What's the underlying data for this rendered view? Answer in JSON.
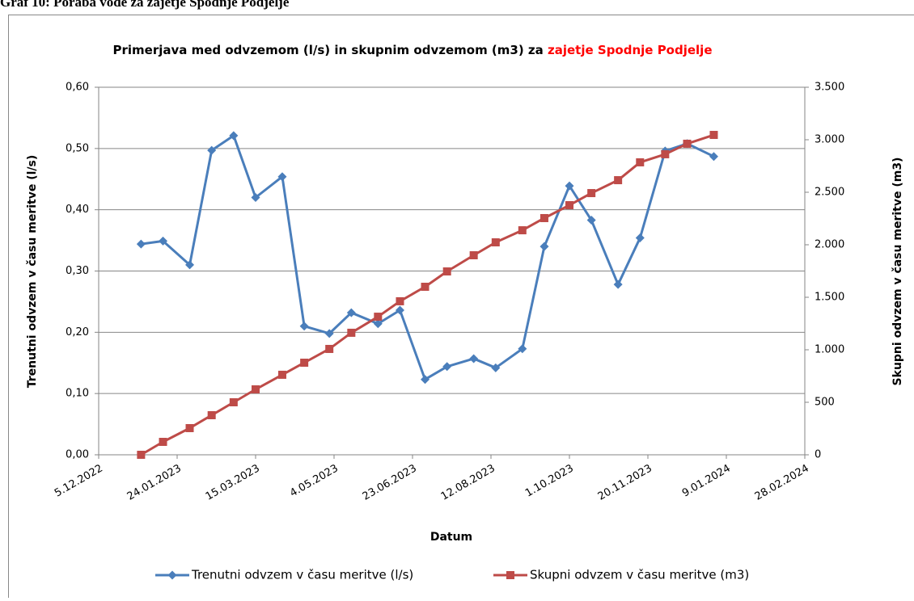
{
  "header": "Graf 10: Poraba vode za zajetje Spodnje Podjelje",
  "chart_data": {
    "type": "line",
    "title": "Primerjava med odvzemom (l/s) in skupnim odvzemom (m3) za",
    "title_highlight": "zajetje Spodnje Podjelje",
    "x_label": "Datum",
    "y_label": "Trenutni odvzem v času meritve (l/s)",
    "y2_label": "Skupni odvzem v času meritve (m3)",
    "x": [
      "2023-01-01",
      "2023-01-15",
      "2023-02-01",
      "2023-02-15",
      "2023-03-01",
      "2023-03-15",
      "2023-04-01",
      "2023-04-15",
      "2023-05-01",
      "2023-05-15",
      "2023-06-01",
      "2023-06-15",
      "2023-07-01",
      "2023-07-15",
      "2023-08-01",
      "2023-08-15",
      "2023-09-01",
      "2023-09-15",
      "2023-10-01",
      "2023-10-15",
      "2023-11-01",
      "2023-11-15",
      "2023-12-01",
      "2023-12-15",
      "2024-01-01"
    ],
    "series": [
      {
        "name": "Trenutni odvzem v času meritve (l/s)",
        "color": "#4a7ebb",
        "marker": "diamond",
        "values": [
          0.344,
          0.349,
          0.31,
          0.497,
          0.521,
          0.42,
          0.454,
          0.21,
          0.198,
          0.232,
          0.214,
          0.236,
          0.123,
          0.144,
          0.157,
          0.142,
          0.173,
          0.34,
          0.439,
          0.383,
          0.278,
          0.354,
          0.496,
          0.508,
          0.487
        ]
      },
      {
        "name": "Skupni odvzem v času meritve (m3)",
        "color": "#be4b48",
        "marker": "square",
        "axis": "y2",
        "values": [
          0,
          123,
          254,
          377,
          500,
          623,
          762,
          877,
          1008,
          1162,
          1315,
          1462,
          1600,
          1746,
          1900,
          2023,
          2138,
          2254,
          2377,
          2492,
          2615,
          2785,
          2862,
          2962,
          3046
        ]
      }
    ],
    "xlim": [
      "2022-12-05",
      "2024-02-28"
    ],
    "xticks": [
      {
        "value": "2022-12-05",
        "label": "5.12.2022"
      },
      {
        "value": "2023-01-24",
        "label": "24.01.2023"
      },
      {
        "value": "2023-03-15",
        "label": "15.03.2023"
      },
      {
        "value": "2023-05-04",
        "label": "4.05.2023"
      },
      {
        "value": "2023-06-23",
        "label": "23.06.2023"
      },
      {
        "value": "2023-08-12",
        "label": "12.08.2023"
      },
      {
        "value": "2023-10-01",
        "label": "1.10.2023"
      },
      {
        "value": "2023-11-20",
        "label": "20.11.2023"
      },
      {
        "value": "2024-01-09",
        "label": "9.01.2024"
      },
      {
        "value": "2024-02-28",
        "label": "28.02.2024"
      }
    ],
    "ylim": [
      0,
      0.6
    ],
    "yticks": [
      {
        "value": 0,
        "label": "0,00"
      },
      {
        "value": 0.1,
        "label": "0,10"
      },
      {
        "value": 0.2,
        "label": "0,20"
      },
      {
        "value": 0.3,
        "label": "0,30"
      },
      {
        "value": 0.4,
        "label": "0,40"
      },
      {
        "value": 0.5,
        "label": "0,50"
      },
      {
        "value": 0.6,
        "label": "0,60"
      }
    ],
    "y2lim": [
      0,
      3500
    ],
    "y2ticks": [
      0,
      500,
      {
        "value": 1000,
        "label": "1.000"
      },
      {
        "value": 1500,
        "label": "1.500"
      },
      {
        "value": 2000,
        "label": "2.000"
      },
      {
        "value": 2500,
        "label": "2.500"
      },
      {
        "value": 3000,
        "label": "3.000"
      },
      {
        "value": 3500,
        "label": "3.500"
      }
    ],
    "grid": true,
    "legend": "bottom"
  }
}
